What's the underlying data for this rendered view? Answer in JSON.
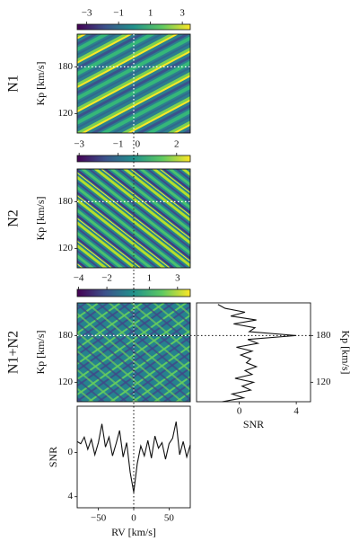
{
  "chart_data": [
    {
      "type": "heatmap",
      "row_label": "N1",
      "ylabel": "Kp [km/s]",
      "xlim": [
        -80,
        80
      ],
      "ylim": [
        95,
        222
      ],
      "yticks": [
        120,
        180
      ],
      "marker": {
        "x": 0,
        "y": 180
      },
      "colorbar": {
        "clim": [
          -3.6,
          3.5
        ],
        "ticks": [
          {
            "value": -3,
            "label": "−3"
          },
          {
            "value": -1,
            "label": "−1"
          },
          1,
          3
        ]
      }
    },
    {
      "type": "heatmap",
      "row_label": "N2",
      "ylabel": "Kp [km/s]",
      "xlim": [
        -80,
        80
      ],
      "ylim": [
        95,
        222
      ],
      "yticks": [
        120,
        180
      ],
      "marker": {
        "x": 0,
        "y": 180
      },
      "colorbar": {
        "clim": [
          -3.1,
          2.7
        ],
        "ticks": [
          {
            "value": -3,
            "label": "−3"
          },
          {
            "value": -1,
            "label": "−1"
          },
          0,
          2
        ]
      }
    },
    {
      "type": "heatmap",
      "row_label": "N1+N2",
      "ylabel": "Kp [km/s]",
      "xlim": [
        -80,
        80
      ],
      "ylim": [
        95,
        222
      ],
      "yticks": [
        120,
        180
      ],
      "marker": {
        "x": 0,
        "y": 180
      },
      "colorbar": {
        "clim": [
          -4.1,
          3.9
        ],
        "ticks": [
          {
            "value": -4,
            "label": "−4"
          },
          {
            "value": -2,
            "label": "−2"
          },
          1,
          3
        ]
      }
    },
    {
      "type": "kp-profile",
      "xlabel": "SNR",
      "ylabel": "Kp [km/s]",
      "xlim": [
        -3,
        5
      ],
      "xticks": [
        0,
        4
      ],
      "ylim": [
        95,
        222
      ],
      "yticks": [
        120,
        180
      ],
      "marker": {
        "y": 180
      },
      "kp": [
        95,
        100,
        105,
        110,
        115,
        120,
        125,
        130,
        135,
        140,
        145,
        150,
        155,
        160,
        165,
        170,
        175,
        180,
        185,
        190,
        195,
        200,
        205,
        210,
        215,
        220
      ],
      "values": [
        -1.2,
        0.3,
        -0.5,
        0.8,
        0.2,
        1.0,
        -0.3,
        0.9,
        0.4,
        1.2,
        0.5,
        0.8,
        0.1,
        0.9,
        -0.2,
        1.3,
        0.6,
        4.0,
        0.7,
        1.1,
        -0.4,
        1.2,
        -0.6,
        0.4,
        -1.0,
        -1.5
      ]
    },
    {
      "type": "line",
      "xlabel": "RV [km/s]",
      "ylabel": "SNR",
      "xlim": [
        -80,
        80
      ],
      "xticks": [
        {
          "value": -50,
          "label": "−50"
        },
        0,
        50
      ],
      "ylim": [
        5.0,
        -4.2
      ],
      "yticks": [
        0,
        4
      ],
      "marker": {
        "x": 0
      },
      "x": [
        -80,
        -75,
        -70,
        -65,
        -60,
        -55,
        -50,
        -45,
        -40,
        -35,
        -30,
        -25,
        -20,
        -15,
        -10,
        -5,
        0,
        5,
        10,
        15,
        20,
        25,
        30,
        35,
        40,
        45,
        50,
        55,
        60,
        65,
        70,
        75,
        80
      ],
      "values": [
        -1.0,
        -0.8,
        -1.4,
        -0.3,
        -1.2,
        0.2,
        -0.9,
        -2.6,
        -0.5,
        -1.4,
        0.3,
        -0.8,
        -2.0,
        0.4,
        -0.9,
        1.8,
        3.6,
        1.0,
        -0.6,
        0.3,
        -1.1,
        0.5,
        -1.5,
        -0.4,
        -0.9,
        0.6,
        -0.8,
        -1.3,
        -2.8,
        0.2,
        -1.0,
        0.4,
        -0.7
      ]
    }
  ]
}
